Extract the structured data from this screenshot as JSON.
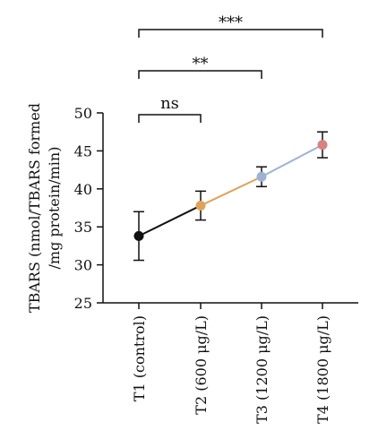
{
  "chart_data": {
    "type": "line",
    "categories": [
      "T1 (control)",
      "T2 (600 μg/L)",
      "T3 (1200 μg/L)",
      "T4 (1800 μg/L)"
    ],
    "values": [
      33.8,
      37.8,
      41.6,
      45.8
    ],
    "error": [
      3.2,
      1.9,
      1.3,
      1.7
    ],
    "point_colors": [
      "#111111",
      "#e0a25a",
      "#9db2d3",
      "#d98080"
    ],
    "segment_colors": [
      "#111111",
      "#e0a25a",
      "#9db2d3"
    ],
    "ylabel_lines": [
      "TBARS (nmol/TBARS formed",
      "/mg protein/min)"
    ],
    "xlabel": "",
    "ylim": [
      25,
      50
    ],
    "yticks": [
      25,
      30,
      35,
      40,
      45,
      50
    ],
    "grid": false,
    "significance": [
      {
        "from": 0,
        "to": 1,
        "label": "ns"
      },
      {
        "from": 0,
        "to": 2,
        "label": "**"
      },
      {
        "from": 0,
        "to": 3,
        "label": "***"
      }
    ]
  }
}
